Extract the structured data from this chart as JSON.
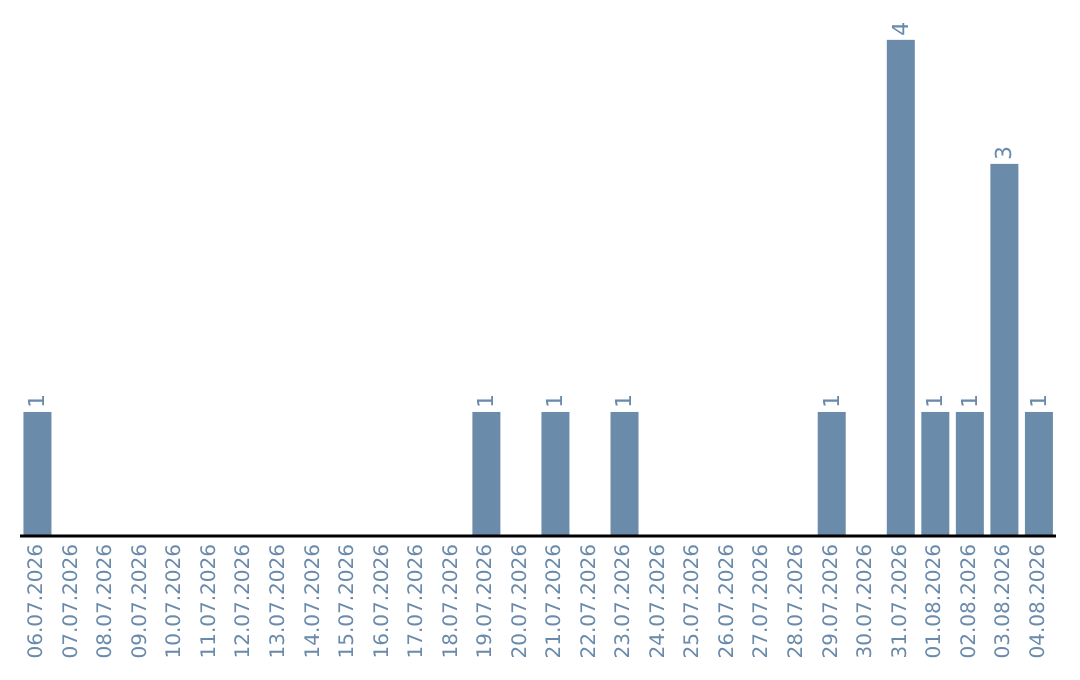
{
  "chart_data": {
    "type": "bar",
    "categories": [
      "06.07.2026",
      "07.07.2026",
      "08.07.2026",
      "09.07.2026",
      "10.07.2026",
      "11.07.2026",
      "12.07.2026",
      "13.07.2026",
      "14.07.2026",
      "15.07.2026",
      "16.07.2026",
      "17.07.2026",
      "18.07.2026",
      "19.07.2026",
      "20.07.2026",
      "21.07.2026",
      "22.07.2026",
      "23.07.2026",
      "24.07.2026",
      "25.07.2026",
      "26.07.2026",
      "27.07.2026",
      "28.07.2026",
      "29.07.2026",
      "30.07.2026",
      "31.07.2026",
      "01.08.2026",
      "02.08.2026",
      "03.08.2026",
      "04.08.2026"
    ],
    "values": [
      1,
      0,
      0,
      0,
      0,
      0,
      0,
      0,
      0,
      0,
      0,
      0,
      0,
      1,
      0,
      1,
      0,
      1,
      0,
      0,
      0,
      0,
      0,
      1,
      0,
      4,
      1,
      1,
      3,
      1
    ],
    "value_labels": [
      "1",
      null,
      null,
      null,
      null,
      null,
      null,
      null,
      null,
      null,
      null,
      null,
      null,
      "1",
      null,
      "1",
      null,
      "1",
      null,
      null,
      null,
      null,
      null,
      "1",
      null,
      "4",
      "1",
      "1",
      "3",
      "1"
    ],
    "color": "#6b8bab",
    "grid": false,
    "legend": false
  }
}
